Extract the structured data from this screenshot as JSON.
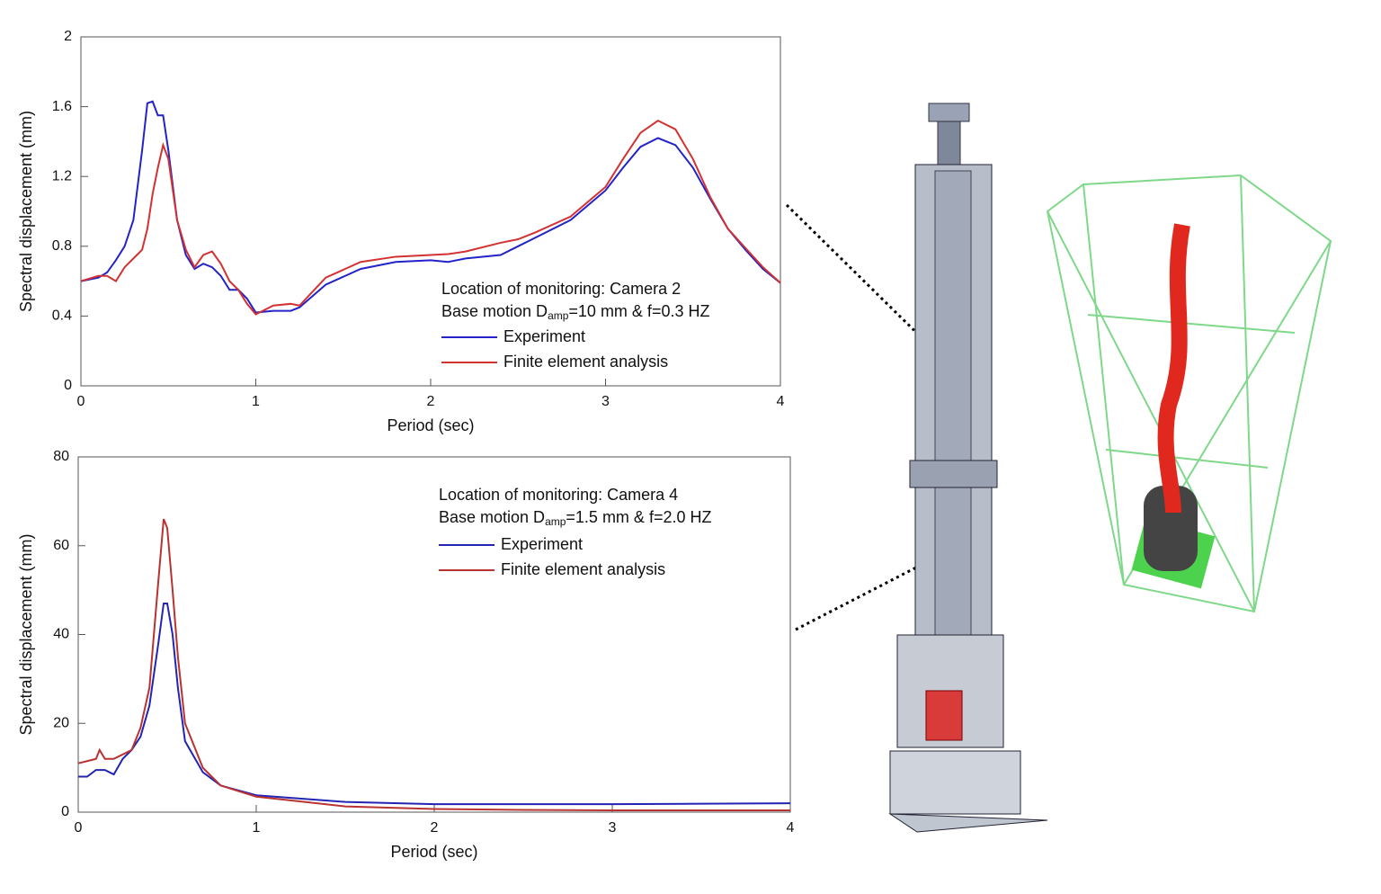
{
  "chart_data": [
    {
      "type": "line",
      "xlabel": "Period (sec)",
      "ylabel": "Spectral displacement (mm)",
      "xlim": [
        0,
        4
      ],
      "ylim": [
        0,
        2
      ],
      "xticks": [
        0,
        1,
        2,
        3,
        4
      ],
      "yticks": [
        0,
        0.4,
        0.8,
        1.2,
        1.6,
        2
      ],
      "annotations": [
        {
          "text": "Location of monitoring: Camera 2"
        },
        {
          "text": "Base motion D",
          "sub": "amp",
          "after": "=10 mm & f=0.3 HZ"
        }
      ],
      "x": [
        0,
        0.1,
        0.15,
        0.2,
        0.25,
        0.3,
        0.35,
        0.38,
        0.41,
        0.44,
        0.47,
        0.5,
        0.55,
        0.6,
        0.65,
        0.7,
        0.75,
        0.8,
        0.85,
        0.9,
        0.95,
        1.0,
        1.1,
        1.2,
        1.25,
        1.4,
        1.6,
        1.8,
        2.0,
        2.1,
        2.2,
        2.4,
        2.5,
        2.6,
        2.8,
        3.0,
        3.1,
        3.2,
        3.3,
        3.4,
        3.5,
        3.6,
        3.7,
        3.8,
        3.9,
        4.0
      ],
      "series": [
        {
          "name": "Experiment",
          "color": "#2323c8",
          "values": [
            0.6,
            0.62,
            0.65,
            0.72,
            0.8,
            0.95,
            1.35,
            1.62,
            1.63,
            1.55,
            1.55,
            1.35,
            0.95,
            0.75,
            0.67,
            0.7,
            0.68,
            0.63,
            0.55,
            0.55,
            0.5,
            0.42,
            0.43,
            0.43,
            0.45,
            0.58,
            0.67,
            0.71,
            0.72,
            0.71,
            0.73,
            0.75,
            0.8,
            0.85,
            0.95,
            1.12,
            1.25,
            1.37,
            1.42,
            1.38,
            1.25,
            1.07,
            0.9,
            0.78,
            0.67,
            0.59
          ]
        },
        {
          "name": "Finite element analysis",
          "color": "#d23232",
          "values": [
            0.6,
            0.63,
            0.63,
            0.6,
            0.68,
            0.73,
            0.78,
            0.9,
            1.1,
            1.25,
            1.38,
            1.3,
            0.95,
            0.78,
            0.68,
            0.75,
            0.77,
            0.7,
            0.6,
            0.55,
            0.47,
            0.41,
            0.46,
            0.47,
            0.46,
            0.62,
            0.71,
            0.74,
            0.75,
            0.755,
            0.77,
            0.82,
            0.84,
            0.88,
            0.97,
            1.14,
            1.3,
            1.45,
            1.52,
            1.47,
            1.3,
            1.08,
            0.9,
            0.79,
            0.68,
            0.59
          ]
        }
      ]
    },
    {
      "type": "line",
      "xlabel": "Period (sec)",
      "ylabel": "Spectral displacement (mm)",
      "xlim": [
        0,
        4
      ],
      "ylim": [
        0,
        80
      ],
      "xticks": [
        0,
        1,
        2,
        3,
        4
      ],
      "yticks": [
        0,
        20,
        40,
        60,
        80
      ],
      "annotations": [
        {
          "text": "Location of monitoring: Camera 4"
        },
        {
          "text": "Base motion D",
          "sub": "amp",
          "after": "=1.5 mm & f=2.0 HZ"
        }
      ],
      "x": [
        0,
        0.05,
        0.1,
        0.12,
        0.15,
        0.2,
        0.25,
        0.3,
        0.35,
        0.4,
        0.45,
        0.48,
        0.5,
        0.53,
        0.56,
        0.6,
        0.7,
        0.8,
        1.0,
        1.5,
        2,
        2.5,
        3,
        3.5,
        4
      ],
      "series": [
        {
          "name": "Experiment",
          "color": "#2323b4",
          "values": [
            8,
            8,
            9.5,
            9.5,
            9.5,
            8.5,
            12,
            14,
            17,
            24,
            38,
            47,
            47,
            40,
            28,
            16,
            9,
            6,
            3.8,
            2.3,
            1.8,
            1.8,
            1.8,
            1.9,
            2.0
          ]
        },
        {
          "name": "Finite element analysis",
          "color": "#b83232",
          "values": [
            11,
            11.5,
            12,
            14,
            12,
            12,
            13,
            14,
            19,
            28,
            52,
            66,
            64,
            50,
            35,
            20,
            10,
            6,
            3.5,
            1.3,
            0.7,
            0.5,
            0.4,
            0.4,
            0.4
          ]
        }
      ]
    }
  ]
}
